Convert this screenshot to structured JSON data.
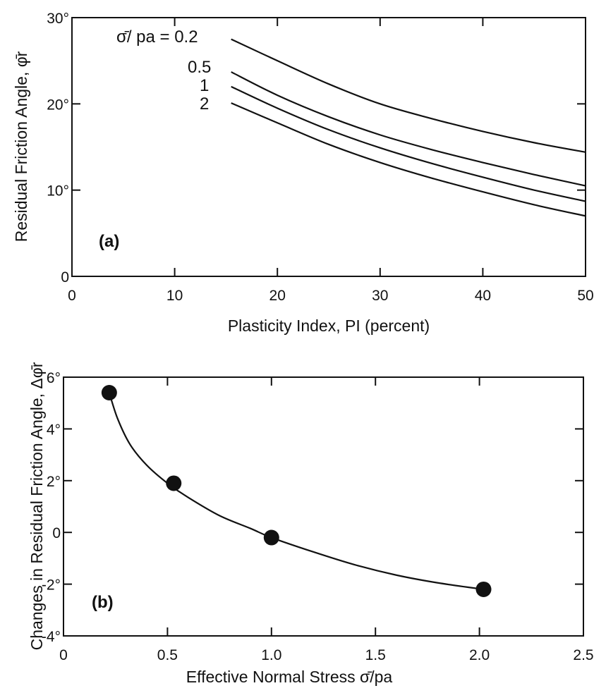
{
  "chart_data": [
    {
      "type": "line",
      "panel_label": "(a)",
      "xlabel": "Plasticity Index, PI (percent)",
      "ylabel": "Residual Friction Angle, φ̄r",
      "xlim": [
        0,
        50
      ],
      "ylim": [
        0,
        30
      ],
      "xticks": [
        0,
        10,
        20,
        30,
        40,
        50
      ],
      "xtick_labels": [
        "0",
        "10",
        "20",
        "30",
        "40",
        "50"
      ],
      "yticks": [
        0,
        10,
        20,
        30
      ],
      "ytick_labels": [
        "0",
        "10°",
        "20°",
        "30°"
      ],
      "grid": false,
      "legend": "none",
      "x": [
        15.5,
        20,
        25,
        30,
        35,
        40,
        45,
        50
      ],
      "series": [
        {
          "name": "σ̄/ pa = 0.2",
          "values": [
            27.5,
            25.0,
            22.3,
            20.0,
            18.3,
            16.8,
            15.5,
            14.4
          ]
        },
        {
          "name": "0.5",
          "values": [
            23.7,
            21.0,
            18.5,
            16.4,
            14.7,
            13.2,
            11.8,
            10.5
          ]
        },
        {
          "name": "1",
          "values": [
            22.0,
            19.5,
            17.0,
            14.9,
            13.1,
            11.5,
            10.0,
            8.7
          ]
        },
        {
          "name": "2",
          "values": [
            20.1,
            17.8,
            15.3,
            13.2,
            11.4,
            9.8,
            8.3,
            7.0
          ]
        }
      ]
    },
    {
      "type": "scatter",
      "panel_label": "(b)",
      "xlabel": "Effective Normal Stress σ̄/pa",
      "ylabel": "Changes in Residual Friction Angle, Δφ̄r",
      "xlim": [
        0,
        2.5
      ],
      "ylim": [
        -4,
        6
      ],
      "xticks": [
        0,
        0.5,
        1.0,
        1.5,
        2.0,
        2.5
      ],
      "xtick_labels": [
        "0",
        "0.5",
        "1.0",
        "1.5",
        "2.0",
        "2.5"
      ],
      "yticks": [
        -4,
        -2,
        0,
        2,
        4,
        6
      ],
      "ytick_labels": [
        "-4°",
        "-2°",
        "0",
        "2°",
        "4°",
        "6°"
      ],
      "grid": false,
      "legend": "none",
      "x": [
        0.22,
        0.53,
        1.0,
        2.02
      ],
      "values": [
        5.4,
        1.9,
        -0.2,
        -2.2
      ],
      "fit_curve": {
        "x": [
          0.22,
          0.26,
          0.32,
          0.4,
          0.5,
          0.6,
          0.75,
          0.9,
          1.0,
          1.2,
          1.4,
          1.6,
          1.8,
          2.02
        ],
        "values": [
          5.4,
          4.4,
          3.4,
          2.6,
          1.9,
          1.35,
          0.65,
          0.15,
          -0.2,
          -0.75,
          -1.25,
          -1.65,
          -1.95,
          -2.2
        ]
      }
    }
  ]
}
